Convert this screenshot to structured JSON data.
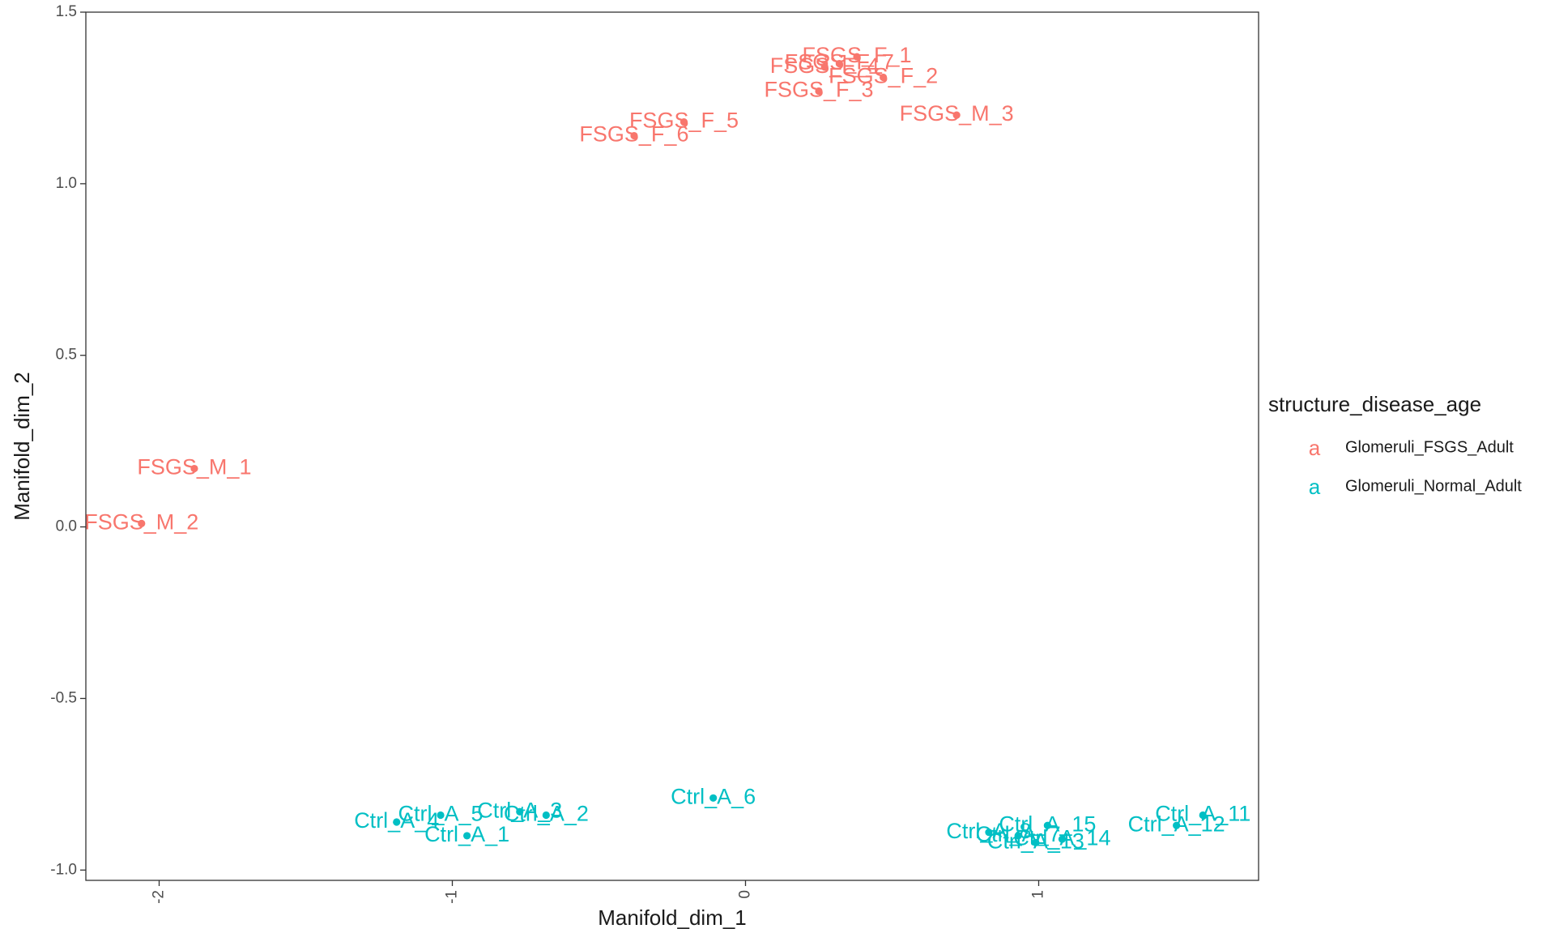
{
  "chart_data": {
    "type": "scatter",
    "xlabel": "Manifold_dim_1",
    "ylabel": "Manifold_dim_2",
    "xlim": [
      -2.25,
      1.75
    ],
    "ylim": [
      -1.03,
      1.5
    ],
    "x_ticks": [
      -2,
      -1,
      0,
      1
    ],
    "x_tick_labels": [
      "-2",
      "-1",
      "0",
      "1"
    ],
    "y_ticks": [
      -1.0,
      -0.5,
      0.0,
      0.5,
      1.0,
      1.5
    ],
    "y_tick_labels": [
      "-1.0",
      "-0.5",
      "0.0",
      "0.5",
      "1.0",
      "1.5"
    ],
    "grid": false,
    "legend": {
      "title": "structure_disease_age",
      "position": "right",
      "key_glyph": "a"
    },
    "series": [
      {
        "name": "Glomeruli_FSGS_Adult",
        "color": "#F8766D",
        "points": [
          {
            "label": "FSGS_F_1",
            "x": 0.38,
            "y": 1.37
          },
          {
            "label": "FSGS_F_7",
            "x": 0.32,
            "y": 1.35
          },
          {
            "label": "FSGS_F_4",
            "x": 0.27,
            "y": 1.34
          },
          {
            "label": "FSGS_F_2",
            "x": 0.47,
            "y": 1.31
          },
          {
            "label": "FSGS_F_3",
            "x": 0.25,
            "y": 1.27
          },
          {
            "label": "FSGS_M_3",
            "x": 0.72,
            "y": 1.2
          },
          {
            "label": "FSGS_F_5",
            "x": -0.21,
            "y": 1.18
          },
          {
            "label": "FSGS_F_6",
            "x": -0.38,
            "y": 1.14
          },
          {
            "label": "FSGS_M_1",
            "x": -1.88,
            "y": 0.17
          },
          {
            "label": "FSGS_M_2",
            "x": -2.06,
            "y": 0.01
          }
        ]
      },
      {
        "name": "Glomeruli_Normal_Adult",
        "color": "#00BFC4",
        "points": [
          {
            "label": "Ctrl_A_6",
            "x": -0.11,
            "y": -0.79
          },
          {
            "label": "Ctrl_A_3",
            "x": -0.77,
            "y": -0.83
          },
          {
            "label": "Ctrl_A_2",
            "x": -0.68,
            "y": -0.84
          },
          {
            "label": "Ctrl_A_5",
            "x": -1.04,
            "y": -0.84
          },
          {
            "label": "Ctrl_A_4",
            "x": -1.19,
            "y": -0.86
          },
          {
            "label": "Ctrl_A_1",
            "x": -0.95,
            "y": -0.9
          },
          {
            "label": "Ctrl_A_11",
            "x": 1.56,
            "y": -0.84
          },
          {
            "label": "Ctrl_A_12",
            "x": 1.47,
            "y": -0.87
          },
          {
            "label": "Ctrl_A_15",
            "x": 1.03,
            "y": -0.87
          },
          {
            "label": "Ctrl_A_8",
            "x": 0.83,
            "y": -0.89
          },
          {
            "label": "Ctrl_A_7",
            "x": 0.93,
            "y": -0.9
          },
          {
            "label": "Ctrl_A_14",
            "x": 1.08,
            "y": -0.91
          },
          {
            "label": "Ctrl_A_13",
            "x": 0.99,
            "y": -0.92
          }
        ]
      }
    ]
  }
}
